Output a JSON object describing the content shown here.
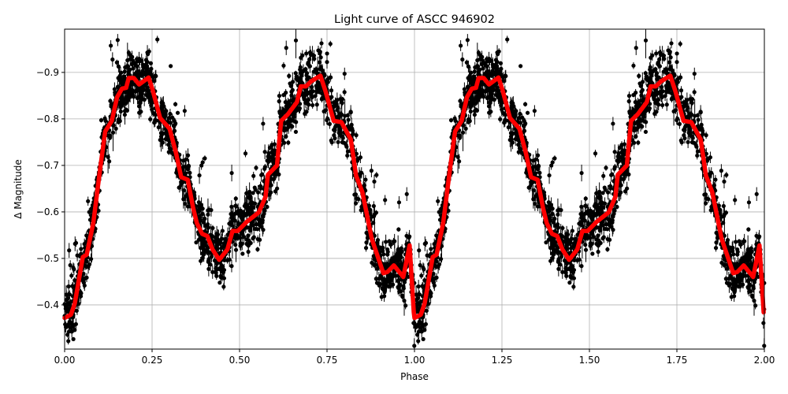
{
  "chart_data": {
    "type": "scatter",
    "title": "Light curve of ASCC 946902",
    "xlabel": "Phase",
    "ylabel": "Δ Magnitude",
    "xlim": [
      0,
      2
    ],
    "ylim": [
      -0.305,
      -0.993
    ],
    "y_inverted": true,
    "grid": true,
    "xticks": [
      "0.00",
      "0.25",
      "0.50",
      "0.75",
      "1.00",
      "1.25",
      "1.50",
      "1.75",
      "2.00"
    ],
    "xtick_values": [
      0,
      0.25,
      0.5,
      0.75,
      1,
      1.25,
      1.5,
      1.75,
      2
    ],
    "yticks": [
      "−0.9",
      "−0.8",
      "−0.7",
      "−0.6",
      "−0.5",
      "−0.4"
    ],
    "ytick_values": [
      -0.9,
      -0.8,
      -0.7,
      -0.6,
      -0.5,
      -0.4
    ],
    "series": [
      {
        "type": "errorbar-scatter",
        "color": "#000000",
        "typical_scatter_mag": 0.03
      },
      {
        "type": "line",
        "color": "#ff0000",
        "x": [
          0,
          0.018,
          0.029,
          0.052,
          0.063,
          0.082,
          0.101,
          0.116,
          0.135,
          0.15,
          0.164,
          0.176,
          0.183,
          0.198,
          0.213,
          0.24,
          0.251,
          0.273,
          0.3,
          0.318,
          0.333,
          0.352,
          0.367,
          0.378,
          0.393,
          0.408,
          0.423,
          0.442,
          0.465,
          0.48,
          0.495,
          0.521,
          0.555,
          0.574,
          0.581,
          0.607,
          0.619,
          0.638,
          0.664,
          0.675,
          0.69,
          0.705,
          0.731,
          0.746,
          0.769,
          0.791,
          0.818,
          0.833,
          0.851,
          0.878,
          0.911,
          0.923,
          0.941,
          0.968,
          0.986,
          0.998,
          1.0,
          1.018,
          1.029,
          1.052,
          1.063,
          1.082,
          1.101,
          1.116,
          1.135,
          1.15,
          1.164,
          1.176,
          1.183,
          1.198,
          1.213,
          1.24,
          1.251,
          1.273,
          1.3,
          1.318,
          1.333,
          1.352,
          1.367,
          1.378,
          1.393,
          1.408,
          1.423,
          1.442,
          1.465,
          1.48,
          1.495,
          1.521,
          1.555,
          1.574,
          1.581,
          1.607,
          1.619,
          1.638,
          1.664,
          1.675,
          1.69,
          1.705,
          1.731,
          1.746,
          1.769,
          1.791,
          1.818,
          1.833,
          1.851,
          1.878,
          1.911,
          1.923,
          1.941,
          1.968,
          1.986,
          1.998
        ],
        "y": [
          -0.372,
          -0.379,
          -0.403,
          -0.503,
          -0.508,
          -0.576,
          -0.689,
          -0.773,
          -0.796,
          -0.847,
          -0.865,
          -0.867,
          -0.888,
          -0.888,
          -0.874,
          -0.889,
          -0.864,
          -0.802,
          -0.779,
          -0.728,
          -0.675,
          -0.669,
          -0.61,
          -0.576,
          -0.553,
          -0.548,
          -0.519,
          -0.497,
          -0.519,
          -0.559,
          -0.559,
          -0.579,
          -0.599,
          -0.632,
          -0.68,
          -0.7,
          -0.796,
          -0.81,
          -0.836,
          -0.87,
          -0.87,
          -0.881,
          -0.893,
          -0.859,
          -0.796,
          -0.793,
          -0.756,
          -0.678,
          -0.643,
          -0.542,
          -0.468,
          -0.471,
          -0.485,
          -0.46,
          -0.528,
          -0.384,
          -0.372,
          -0.379,
          -0.403,
          -0.503,
          -0.508,
          -0.576,
          -0.689,
          -0.773,
          -0.796,
          -0.847,
          -0.865,
          -0.867,
          -0.888,
          -0.888,
          -0.874,
          -0.889,
          -0.864,
          -0.802,
          -0.779,
          -0.728,
          -0.675,
          -0.669,
          -0.61,
          -0.576,
          -0.553,
          -0.548,
          -0.519,
          -0.497,
          -0.519,
          -0.559,
          -0.559,
          -0.579,
          -0.599,
          -0.632,
          -0.68,
          -0.7,
          -0.796,
          -0.81,
          -0.836,
          -0.87,
          -0.87,
          -0.881,
          -0.893,
          -0.859,
          -0.796,
          -0.793,
          -0.756,
          -0.678,
          -0.643,
          -0.542,
          -0.468,
          -0.471,
          -0.485,
          -0.46,
          -0.528,
          -0.384
        ]
      }
    ]
  }
}
